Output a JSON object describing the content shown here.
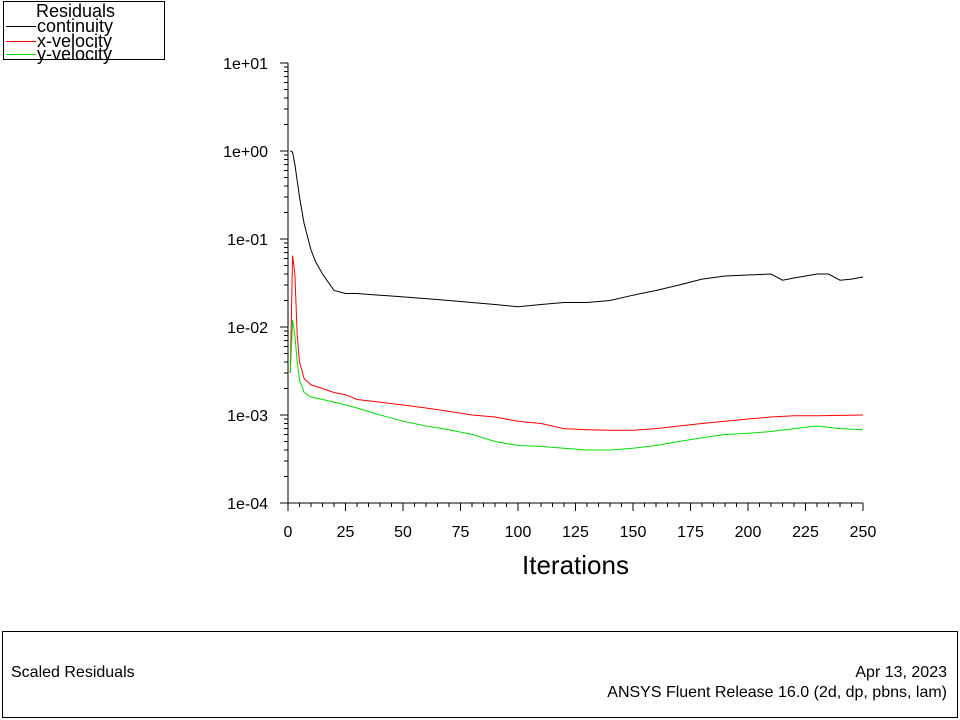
{
  "legend": {
    "title": "Residuals",
    "items": [
      {
        "label": "continuity",
        "color": "#000000"
      },
      {
        "label": "x-velocity",
        "color": "#ff0000"
      },
      {
        "label": "y-velocity",
        "color": "#00e000"
      }
    ]
  },
  "footer": {
    "left": "Scaled Residuals",
    "date": "Apr 13, 2023",
    "release": "ANSYS Fluent Release 16.0 (2d, dp, pbns, lam)"
  },
  "chart_data": {
    "type": "line",
    "title": "",
    "xlabel": "Iterations",
    "ylabel": "",
    "xlim": [
      0,
      250
    ],
    "ylim": [
      0.0001,
      10
    ],
    "yscale": "log",
    "x_ticks": [
      0,
      25,
      50,
      75,
      100,
      125,
      150,
      175,
      200,
      225,
      250
    ],
    "y_ticks": [
      "1e-04",
      "1e-03",
      "1e-02",
      "1e-01",
      "1e+00",
      "1e+01"
    ],
    "legend_position": "top-left",
    "grid": false,
    "series": [
      {
        "name": "continuity",
        "color": "#000000",
        "x": [
          1,
          2,
          3,
          5,
          7,
          10,
          12,
          15,
          18,
          20,
          25,
          30,
          40,
          50,
          60,
          70,
          80,
          90,
          100,
          110,
          120,
          130,
          140,
          150,
          160,
          170,
          180,
          190,
          200,
          210,
          215,
          220,
          230,
          235,
          240,
          245,
          250
        ],
        "y": [
          1.0,
          0.97,
          0.7,
          0.3,
          0.15,
          0.075,
          0.055,
          0.04,
          0.031,
          0.026,
          0.024,
          0.024,
          0.023,
          0.022,
          0.021,
          0.02,
          0.019,
          0.018,
          0.017,
          0.018,
          0.019,
          0.019,
          0.02,
          0.023,
          0.026,
          0.03,
          0.035,
          0.038,
          0.039,
          0.04,
          0.034,
          0.036,
          0.04,
          0.04,
          0.034,
          0.035,
          0.037
        ]
      },
      {
        "name": "x-velocity",
        "color": "#ff0000",
        "x": [
          1,
          2,
          3,
          4,
          5,
          7,
          10,
          15,
          20,
          25,
          30,
          40,
          50,
          60,
          70,
          80,
          90,
          100,
          110,
          120,
          130,
          140,
          150,
          160,
          170,
          180,
          190,
          200,
          210,
          220,
          230,
          240,
          250
        ],
        "y": [
          0.003,
          0.065,
          0.04,
          0.008,
          0.004,
          0.0026,
          0.0022,
          0.002,
          0.0018,
          0.0017,
          0.0015,
          0.0014,
          0.0013,
          0.0012,
          0.0011,
          0.001,
          0.00095,
          0.00085,
          0.0008,
          0.0007,
          0.00068,
          0.00067,
          0.00067,
          0.0007,
          0.00075,
          0.0008,
          0.00085,
          0.0009,
          0.00095,
          0.00098,
          0.00098,
          0.00099,
          0.001
        ]
      },
      {
        "name": "y-velocity",
        "color": "#00e000",
        "x": [
          1,
          2,
          3,
          4,
          5,
          7,
          10,
          15,
          20,
          25,
          30,
          40,
          50,
          60,
          70,
          80,
          90,
          100,
          110,
          120,
          130,
          140,
          150,
          160,
          170,
          180,
          190,
          200,
          210,
          220,
          230,
          240,
          250
        ],
        "y": [
          0.003,
          0.012,
          0.008,
          0.004,
          0.0025,
          0.0018,
          0.0016,
          0.0015,
          0.0014,
          0.0013,
          0.0012,
          0.001,
          0.00085,
          0.00075,
          0.00068,
          0.0006,
          0.0005,
          0.00045,
          0.00044,
          0.00042,
          0.0004,
          0.0004,
          0.00042,
          0.00045,
          0.0005,
          0.00055,
          0.0006,
          0.00062,
          0.00065,
          0.0007,
          0.00075,
          0.0007,
          0.00068
        ]
      }
    ]
  }
}
